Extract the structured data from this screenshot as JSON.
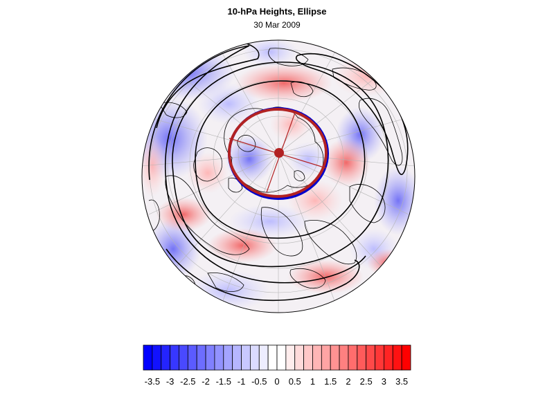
{
  "title": "10-hPa Heights, Ellipse",
  "subtitle": "30 Mar 2009",
  "colorbar": {
    "tick_labels": [
      "-3.5",
      "-3",
      "-2.5",
      "-2",
      "-1.5",
      "-1",
      "-0.5",
      "0",
      "0.5",
      "1",
      "1.5",
      "2",
      "2.5",
      "3",
      "3.5"
    ],
    "range": [
      -3.75,
      3.75
    ],
    "step": 0.25,
    "colors": {
      "negative": "#0000ff",
      "neutral": "#ffffff",
      "positive": "#ff0000"
    }
  },
  "map": {
    "projection": "orthographic, north-polar",
    "ellipse": {
      "ring_colors": [
        "#0000cc",
        "#b22222"
      ],
      "center_color": "#b22222"
    }
  }
}
